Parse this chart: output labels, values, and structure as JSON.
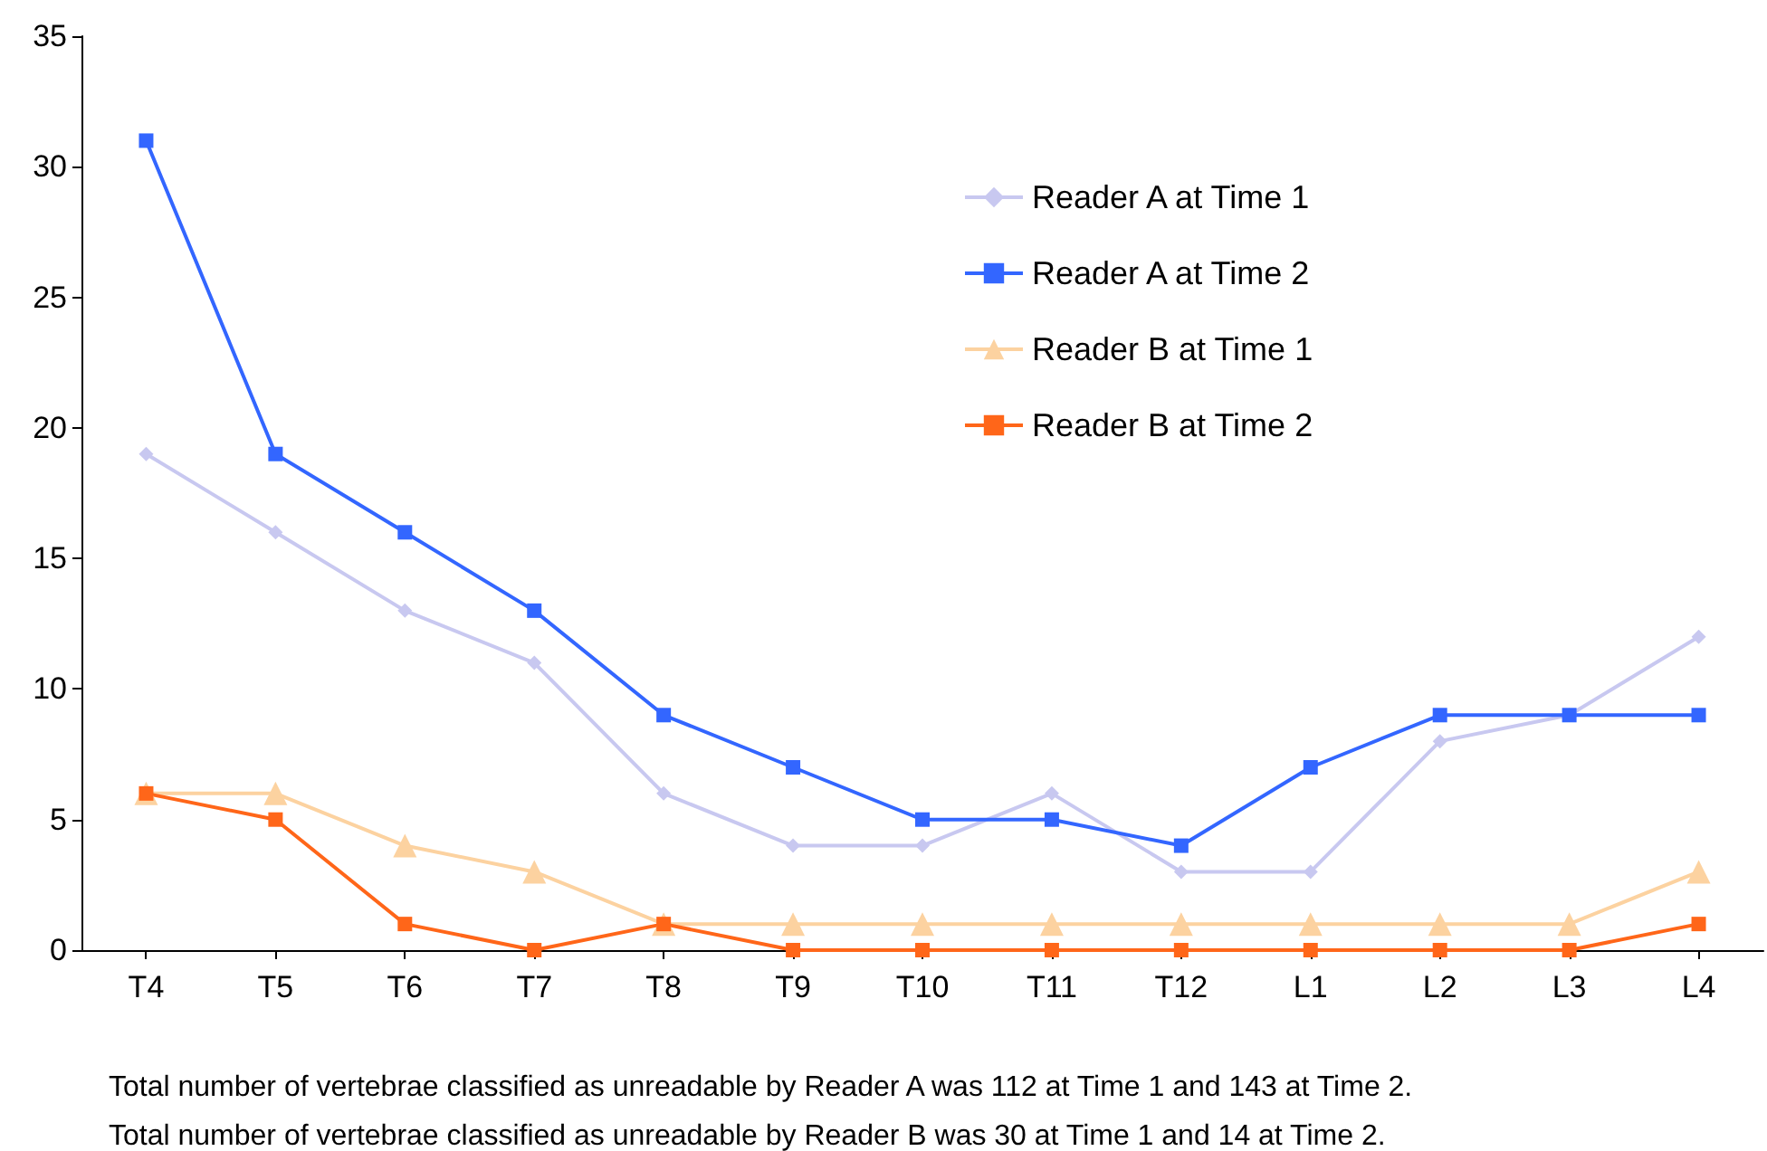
{
  "chart_data": {
    "type": "line",
    "categories": [
      "T4",
      "T5",
      "T6",
      "T7",
      "T8",
      "T9",
      "T10",
      "T11",
      "T12",
      "L1",
      "L2",
      "L3",
      "L4"
    ],
    "series": [
      {
        "name": "Reader A at Time 1",
        "color": "#c8c8f0",
        "marker": "diamond",
        "values": [
          19,
          16,
          13,
          11,
          6,
          4,
          4,
          6,
          3,
          3,
          8,
          9,
          12
        ]
      },
      {
        "name": "Reader A at Time 2",
        "color": "#3366ff",
        "marker": "square",
        "values": [
          31,
          19,
          16,
          13,
          9,
          7,
          5,
          5,
          4,
          7,
          9,
          9,
          9
        ]
      },
      {
        "name": "Reader B at Time 1",
        "color": "#fcd2a0",
        "marker": "triangle",
        "values": [
          6,
          6,
          4,
          3,
          1,
          1,
          1,
          1,
          1,
          1,
          1,
          1,
          3
        ]
      },
      {
        "name": "Reader B at Time 2",
        "color": "#ff6619",
        "marker": "square",
        "values": [
          6,
          5,
          1,
          0,
          1,
          0,
          0,
          0,
          0,
          0,
          0,
          0,
          1
        ]
      }
    ],
    "ylim": [
      0,
      35
    ],
    "yticks": [
      0,
      5,
      10,
      15,
      20,
      25,
      30,
      35
    ],
    "grid": false,
    "legend": "top right",
    "annotations": [
      "Total number of vertebrae classified as unreadable by Reader A was 112 at Time 1 and 143 at Time 2.",
      "Total number of vertebrae classified as unreadable by Reader B was 30 at Time 1 and 14 at Time 2."
    ]
  }
}
